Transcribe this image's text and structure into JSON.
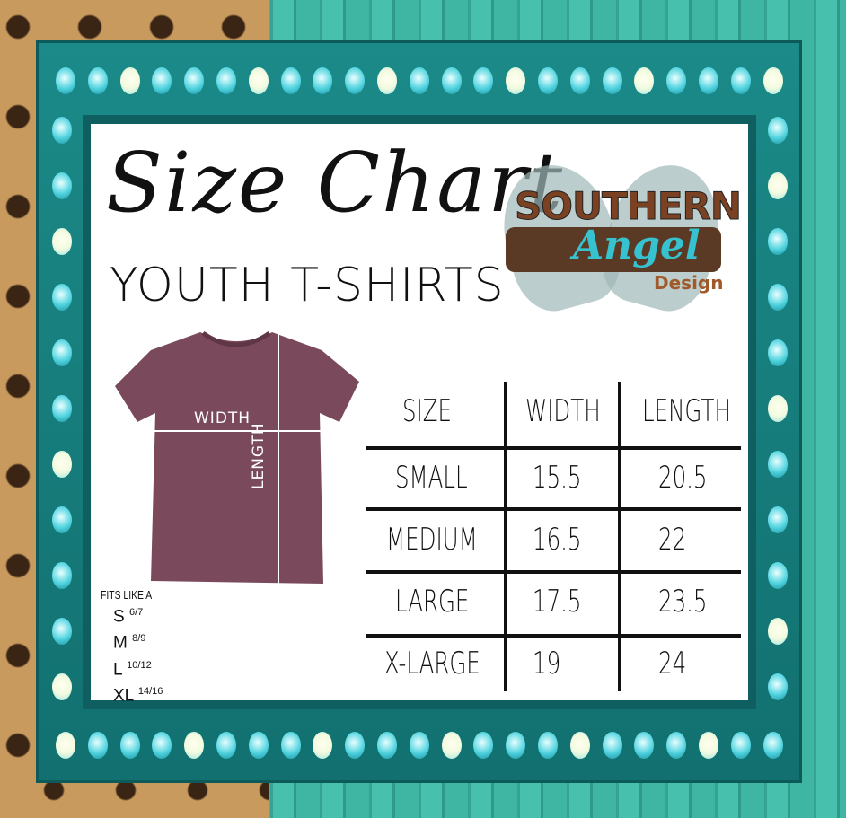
{
  "title": "Size Chart",
  "subtitle": "YOUTH T-SHIRTS",
  "logo": {
    "line1": "SOUTHERN",
    "line2": "Angel",
    "line3": "Design"
  },
  "shirt": {
    "width_label": "WIDTH",
    "length_label": "LENGTH",
    "color": "#7a4a5c"
  },
  "fits": {
    "heading": "FITS LIKE A",
    "rows": [
      {
        "size": "S",
        "ages": "6/7"
      },
      {
        "size": "M",
        "ages": "8/9"
      },
      {
        "size": "L",
        "ages": "10/12"
      },
      {
        "size": "XL",
        "ages": "14/16"
      }
    ]
  },
  "table": {
    "headers": [
      "SIZE",
      "WIDTH",
      "LENGTH"
    ],
    "rows": [
      [
        "SMALL",
        "15.5",
        "20.5"
      ],
      [
        "MEDIUM",
        "16.5",
        "22"
      ],
      [
        "LARGE",
        "17.5",
        "23.5"
      ],
      [
        "X-LARGE",
        "19",
        "24"
      ]
    ]
  },
  "colors": {
    "frame": "#1a8382",
    "bulb": "#4fd3df",
    "panel": "#ffffff"
  }
}
